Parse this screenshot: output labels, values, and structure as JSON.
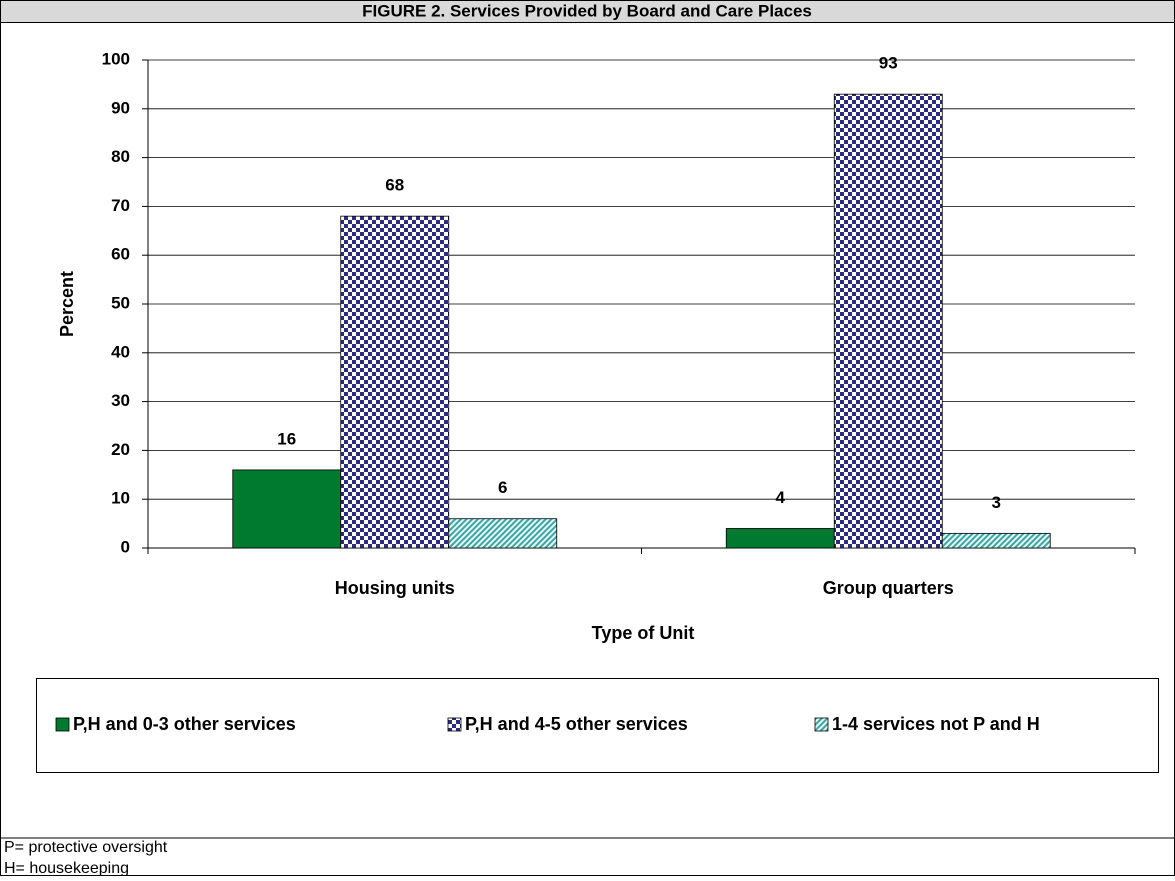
{
  "chart_data": {
    "type": "bar",
    "title": "FIGURE 2. Services Provided by Board and Care Places",
    "categories": [
      "Housing units",
      "Group quarters"
    ],
    "series": [
      {
        "name": "P,H and 0-3 other services",
        "color": "#007a2e",
        "pattern": "solid",
        "values": [
          16,
          4
        ]
      },
      {
        "name": "P,H and 4-5 other services",
        "color": "#2b2b80",
        "pattern": "checker",
        "values": [
          68,
          93
        ]
      },
      {
        "name": "1-4 services not P and H",
        "color": "#3aa6a6",
        "pattern": "hatch",
        "values": [
          6,
          3
        ]
      }
    ],
    "xlabel": "Type of Unit",
    "ylabel": "Percent",
    "ylim": [
      0,
      100
    ],
    "yticks": [
      0,
      10,
      20,
      30,
      40,
      50,
      60,
      70,
      80,
      90,
      100
    ],
    "grid": true,
    "legend": "bottom"
  },
  "notes": [
    "P= protective oversight",
    "H= housekeeping"
  ]
}
